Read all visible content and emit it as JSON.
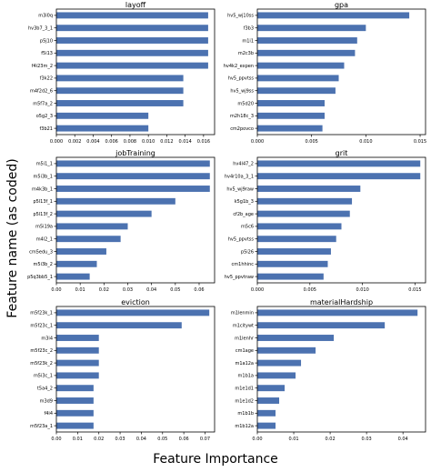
{
  "figure": {
    "ylabel": "Feature name (as coded)",
    "xlabel": "Feature Importance",
    "bar_color": "#4c72b0"
  },
  "chart_data": [
    {
      "type": "bar",
      "orientation": "horizontal",
      "title": "layoff",
      "categories": [
        "m3i0q",
        "hv3b7_3_1",
        "p5j10",
        "f5i13",
        "f4i23m_2",
        "f3k22",
        "m4f2d2_6",
        "m5f7a_2",
        "o5g2_3",
        "f3b21"
      ],
      "values": [
        0.0165,
        0.0165,
        0.0165,
        0.0165,
        0.0165,
        0.0138,
        0.0138,
        0.0138,
        0.01,
        0.01
      ],
      "xlim": [
        0,
        0.0172
      ],
      "xticks": [
        0.0,
        0.002,
        0.004,
        0.006,
        0.008,
        0.01,
        0.012,
        0.014,
        0.016
      ],
      "xtick_labels": [
        "0.000",
        "0.002",
        "0.004",
        "0.006",
        "0.008",
        "0.010",
        "0.012",
        "0.014",
        "0.016"
      ]
    },
    {
      "type": "bar",
      "orientation": "horizontal",
      "title": "gpa",
      "categories": [
        "hv5_wj10ss",
        "f3b3",
        "m1i1",
        "m2c3b",
        "hv4k2_expen",
        "hv5_ppvtss",
        "hv5_wj9ss",
        "m5d20",
        "m2h18c_3",
        "cm2povco"
      ],
      "values": [
        0.014,
        0.01,
        0.0092,
        0.009,
        0.008,
        0.0075,
        0.0072,
        0.0062,
        0.0062,
        0.006
      ],
      "xlim": [
        0,
        0.0155
      ],
      "xticks": [
        0.0,
        0.005,
        0.01,
        0.015
      ],
      "xtick_labels": [
        "0.000",
        "0.005",
        "0.010",
        "0.015"
      ]
    },
    {
      "type": "bar",
      "orientation": "horizontal",
      "title": "jobTraining",
      "categories": [
        "m5i1_1",
        "m5i3b_1",
        "m4k3b_1",
        "p5l13f_1",
        "p5l13f_2",
        "m5i19a",
        "m4l2_1",
        "cm5edu_3",
        "m5i3b_2",
        "p5q3bb5_1"
      ],
      "values": [
        0.0645,
        0.0645,
        0.0645,
        0.05,
        0.04,
        0.03,
        0.027,
        0.021,
        0.017,
        0.014
      ],
      "xlim": [
        0,
        0.0665
      ],
      "xticks": [
        0.0,
        0.01,
        0.02,
        0.03,
        0.04,
        0.05,
        0.06
      ],
      "xtick_labels": [
        "0.00",
        "0.01",
        "0.02",
        "0.03",
        "0.04",
        "0.05",
        "0.06"
      ]
    },
    {
      "type": "bar",
      "orientation": "horizontal",
      "title": "grit",
      "categories": [
        "hv4l47_2",
        "hv4r10a_3_1",
        "hv5_wj9raw",
        "k5g1b_3",
        "cf2b_age",
        "m5c6",
        "hv5_ppvtss",
        "p5i26",
        "cm1hhinc",
        "hv5_ppvtraw"
      ],
      "values": [
        0.0155,
        0.0155,
        0.0098,
        0.009,
        0.0088,
        0.008,
        0.0075,
        0.007,
        0.0067,
        0.0063
      ],
      "xlim": [
        0,
        0.016
      ],
      "xticks": [
        0.0,
        0.005,
        0.01,
        0.015
      ],
      "xtick_labels": [
        "0.000",
        "0.005",
        "0.010",
        "0.015"
      ]
    },
    {
      "type": "bar",
      "orientation": "horizontal",
      "title": "eviction",
      "categories": [
        "m5f23k_1",
        "m5f23c_1",
        "m3i4",
        "m5f23c_2",
        "m5f23k_2",
        "m5i3c_1",
        "t5a4_2",
        "m3d9",
        "f4i4",
        "m5f23a_1"
      ],
      "values": [
        0.072,
        0.059,
        0.02,
        0.02,
        0.02,
        0.02,
        0.0175,
        0.0175,
        0.0175,
        0.0175
      ],
      "xlim": [
        0,
        0.0745
      ],
      "xticks": [
        0.0,
        0.01,
        0.02,
        0.03,
        0.04,
        0.05,
        0.06,
        0.07
      ],
      "xtick_labels": [
        "0.00",
        "0.01",
        "0.02",
        "0.03",
        "0.04",
        "0.05",
        "0.06",
        "0.07"
      ]
    },
    {
      "type": "bar",
      "orientation": "horizontal",
      "title": "materialHardship",
      "categories": [
        "m1lenmin",
        "m1citywt",
        "m1lenhr",
        "cm1age",
        "m1a12a",
        "m1b1a",
        "m1e1d1",
        "m1e1d2",
        "m1b1b",
        "m1b12a"
      ],
      "values": [
        0.044,
        0.035,
        0.021,
        0.016,
        0.012,
        0.0105,
        0.0075,
        0.006,
        0.005,
        0.005
      ],
      "xlim": [
        0,
        0.0462
      ],
      "xticks": [
        0.0,
        0.01,
        0.02,
        0.03,
        0.04
      ],
      "xtick_labels": [
        "0.00",
        "0.01",
        "0.02",
        "0.03",
        "0.04"
      ]
    }
  ]
}
